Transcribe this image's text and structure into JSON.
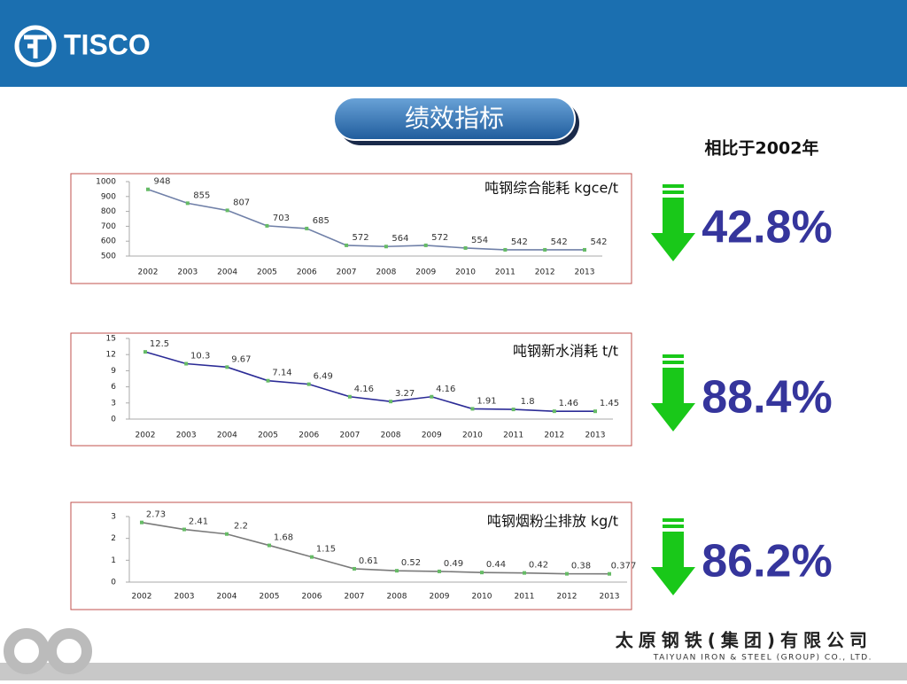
{
  "header": {
    "logo": "TISCO"
  },
  "slide_title": "绩效指标",
  "comparison_note": "相比于2002年",
  "indicators": [
    "42.8%",
    "88.4%",
    "86.2%"
  ],
  "footer": {
    "company_cn": "太原钢铁(集团)有限公司",
    "company_en": "TAIYUAN IRON & STEEL (GROUP) CO., LTD."
  },
  "chart_data": [
    {
      "type": "line",
      "title": "吨钢综合能耗  kgce/t",
      "categories": [
        "2002",
        "2003",
        "2004",
        "2005",
        "2006",
        "2007",
        "2008",
        "2009",
        "2010",
        "2011",
        "2012",
        "2013"
      ],
      "series": [
        {
          "color": "#7080a8",
          "marker_color": "#66bb66",
          "values": [
            948,
            855,
            807,
            703,
            685,
            572,
            564,
            572,
            554,
            542,
            542,
            542
          ]
        }
      ],
      "ylim": [
        500,
        1000
      ],
      "yticks": [
        500,
        600,
        700,
        800,
        900,
        1000
      ]
    },
    {
      "type": "line",
      "title": "吨钢新水消耗  t/t",
      "categories": [
        "2002",
        "2003",
        "2004",
        "2005",
        "2006",
        "2007",
        "2008",
        "2009",
        "2010",
        "2011",
        "2012",
        "2013"
      ],
      "series": [
        {
          "color": "#2b2b96",
          "marker_color": "#66bb66",
          "values": [
            12.5,
            10.3,
            9.67,
            7.14,
            6.49,
            4.16,
            3.27,
            4.16,
            1.91,
            1.8,
            1.46,
            1.45
          ]
        }
      ],
      "ylim": [
        0,
        15
      ],
      "yticks": [
        0,
        3,
        6,
        9,
        12,
        15
      ]
    },
    {
      "type": "line",
      "title": "吨钢烟粉尘排放  kg/t",
      "categories": [
        "2002",
        "2003",
        "2004",
        "2005",
        "2006",
        "2007",
        "2008",
        "2009",
        "2010",
        "2011",
        "2012",
        "2013"
      ],
      "series": [
        {
          "color": "#7a7a7a",
          "marker_color": "#66bb66",
          "values": [
            2.73,
            2.41,
            2.2,
            1.68,
            1.15,
            0.61,
            0.52,
            0.49,
            0.44,
            0.42,
            0.38,
            0.377
          ]
        }
      ],
      "ylim": [
        0,
        3
      ],
      "yticks": [
        0,
        1,
        2,
        3
      ]
    }
  ]
}
